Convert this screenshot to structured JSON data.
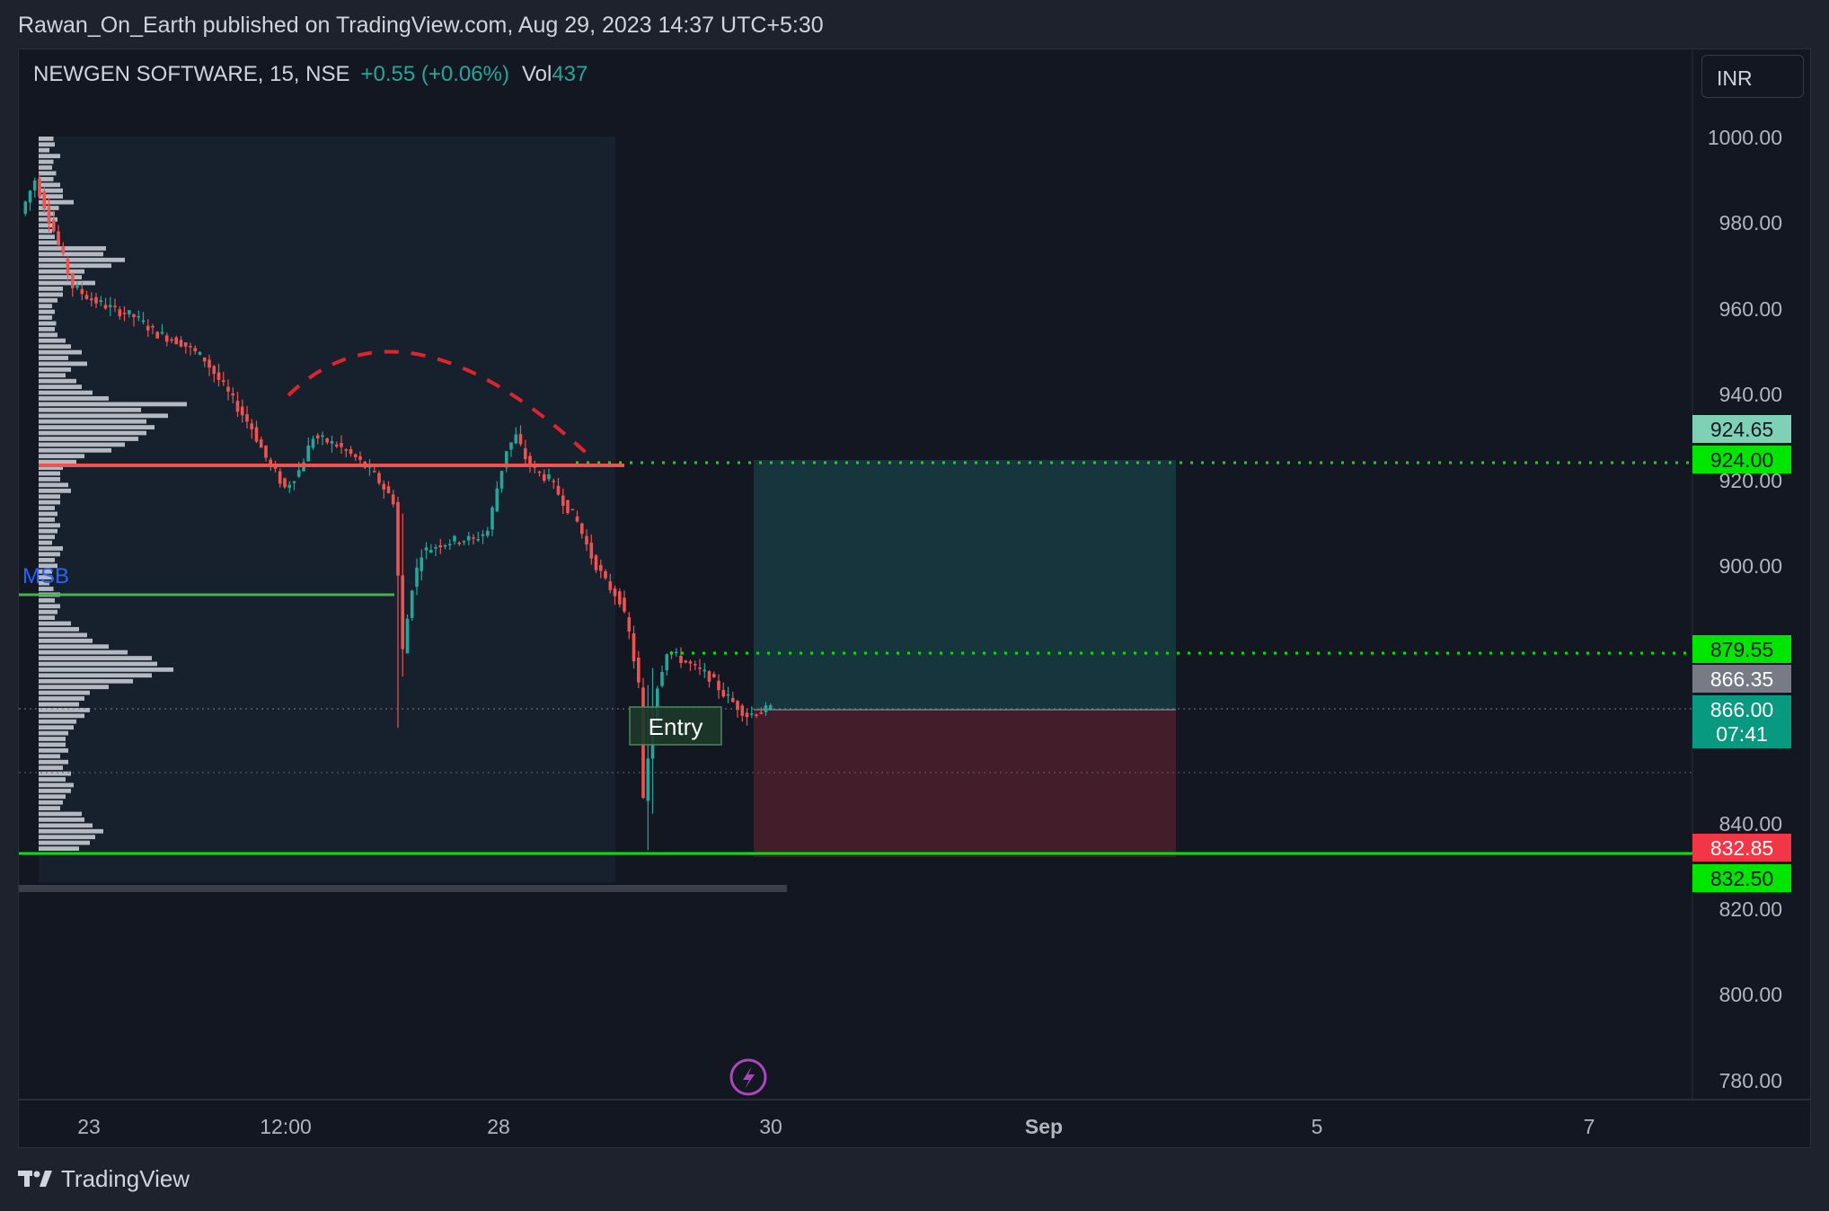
{
  "attribution": "Rawan_On_Earth published on TradingView.com, Aug 29, 2023 14:37 UTC+5:30",
  "legend": {
    "symbol": "NEWGEN SOFTWARE, 15, NSE",
    "change": "+0.55 (+0.06%)",
    "volume_label": "Vol",
    "volume_value": "437"
  },
  "currency_button": "INR",
  "brand": "TradingView",
  "colors": {
    "up": "#26a69a",
    "down": "#ef5350",
    "background": "#131722",
    "target_zone": "#26a69a",
    "stop_zone": "#f23645",
    "green_line": "#00e600",
    "resistance_line": "#ef5350"
  },
  "chart_data": {
    "type": "candlestick",
    "title": "NEWGEN SOFTWARE, 15, NSE",
    "y_ticks": [
      "1000.00",
      "980.00",
      "960.00",
      "940.00",
      "920.00",
      "900.00",
      "840.00",
      "820.00",
      "800.00",
      "780.00"
    ],
    "x_ticks": [
      "23",
      "12:00",
      "28",
      "30",
      "Sep",
      "5",
      "7"
    ],
    "ylim": [
      775,
      1000
    ],
    "price_path": [
      [
        1,
        982
      ],
      [
        4,
        990
      ],
      [
        8,
        978
      ],
      [
        12,
        965
      ],
      [
        16,
        962
      ],
      [
        20,
        960
      ],
      [
        25,
        958
      ],
      [
        30,
        954
      ],
      [
        35,
        952
      ],
      [
        40,
        948
      ],
      [
        45,
        940
      ],
      [
        50,
        932
      ],
      [
        53,
        925
      ],
      [
        57,
        918
      ],
      [
        60,
        922
      ],
      [
        63,
        930
      ],
      [
        68,
        928
      ],
      [
        72,
        925
      ],
      [
        76,
        921
      ],
      [
        80,
        915
      ],
      [
        82,
        880
      ],
      [
        84,
        895
      ],
      [
        86,
        903
      ],
      [
        90,
        905
      ],
      [
        94,
        906
      ],
      [
        97,
        906
      ],
      [
        100,
        908
      ],
      [
        102,
        918
      ],
      [
        104,
        927
      ],
      [
        106,
        930
      ],
      [
        108,
        925
      ],
      [
        110,
        922
      ],
      [
        113,
        920
      ],
      [
        116,
        915
      ],
      [
        119,
        910
      ],
      [
        122,
        902
      ],
      [
        125,
        896
      ],
      [
        128,
        892
      ],
      [
        130,
        884
      ],
      [
        132,
        872
      ],
      [
        133,
        845
      ],
      [
        134,
        855
      ],
      [
        136,
        872
      ],
      [
        138,
        880
      ],
      [
        141,
        878
      ],
      [
        144,
        876
      ],
      [
        147,
        874
      ],
      [
        150,
        870
      ],
      [
        153,
        867
      ],
      [
        155,
        865
      ],
      [
        158,
        866
      ],
      [
        160,
        866.35
      ]
    ],
    "volume_profile": {
      "price_range": [
        833,
        1000
      ],
      "relative_widths": [
        0.55,
        0.6,
        0.4,
        0.8,
        0.55,
        0.5,
        0.65,
        0.55,
        0.8,
        0.9,
        0.9,
        1.3,
        0.75,
        0.6,
        0.7,
        0.55,
        0.5,
        0.6,
        0.8,
        2.5,
        2.4,
        3.2,
        2.7,
        1.7,
        1.6,
        2.1,
        0.9,
        0.9,
        0.7,
        0.5,
        0.6,
        0.5,
        0.65,
        0.6,
        0.7,
        1.0,
        1.2,
        1.6,
        1.1,
        1.8,
        1.2,
        1.0,
        1.4,
        1.6,
        2.0,
        2.6,
        5.5,
        3.8,
        4.8,
        4.0,
        4.3,
        4.0,
        3.7,
        3.2,
        2.7,
        1.7,
        1.4,
        0.9,
        0.8,
        0.8,
        1.1,
        1.2,
        0.8,
        0.8,
        0.6,
        0.7,
        0.6,
        0.8,
        0.7,
        0.6,
        0.5,
        0.9,
        0.8,
        0.6,
        0.7,
        0.5,
        0.5,
        0.4,
        0.55,
        0.8,
        0.6,
        0.8,
        0.7,
        0.6,
        1.2,
        1.5,
        1.8,
        2.0,
        2.6,
        3.3,
        4.2,
        4.4,
        5.0,
        4.2,
        3.5,
        2.6,
        1.9,
        1.7,
        1.5,
        1.9,
        1.7,
        1.4,
        1.3,
        1.1,
        1.0,
        1.0,
        1.1,
        0.8,
        1.1,
        0.9,
        1.2,
        1.0,
        1.3,
        1.2,
        1.0,
        0.9,
        0.8,
        1.6,
        1.7,
        2.0,
        2.4,
        2.1,
        1.9,
        1.5
      ]
    },
    "levels": {
      "target": {
        "label": "924.00",
        "price": 924.0
      },
      "target_high": {
        "label": "924.65",
        "price": 924.65
      },
      "tp1": {
        "label": "879.55",
        "price": 879.55
      },
      "last": {
        "label": "866.35",
        "price": 866.35
      },
      "entry": {
        "label": "866.00",
        "countdown": "07:41",
        "price": 866.0
      },
      "mid_dotted": {
        "price": 851
      },
      "stop_high": {
        "label": "832.85",
        "price": 832.85
      },
      "stop": {
        "label": "832.50",
        "price": 832.5
      },
      "msb_level": {
        "price": 893.3
      },
      "resistance": {
        "price": 924.2
      }
    },
    "annotations": {
      "entry_label": "Entry",
      "msb_label": "MSB"
    }
  }
}
